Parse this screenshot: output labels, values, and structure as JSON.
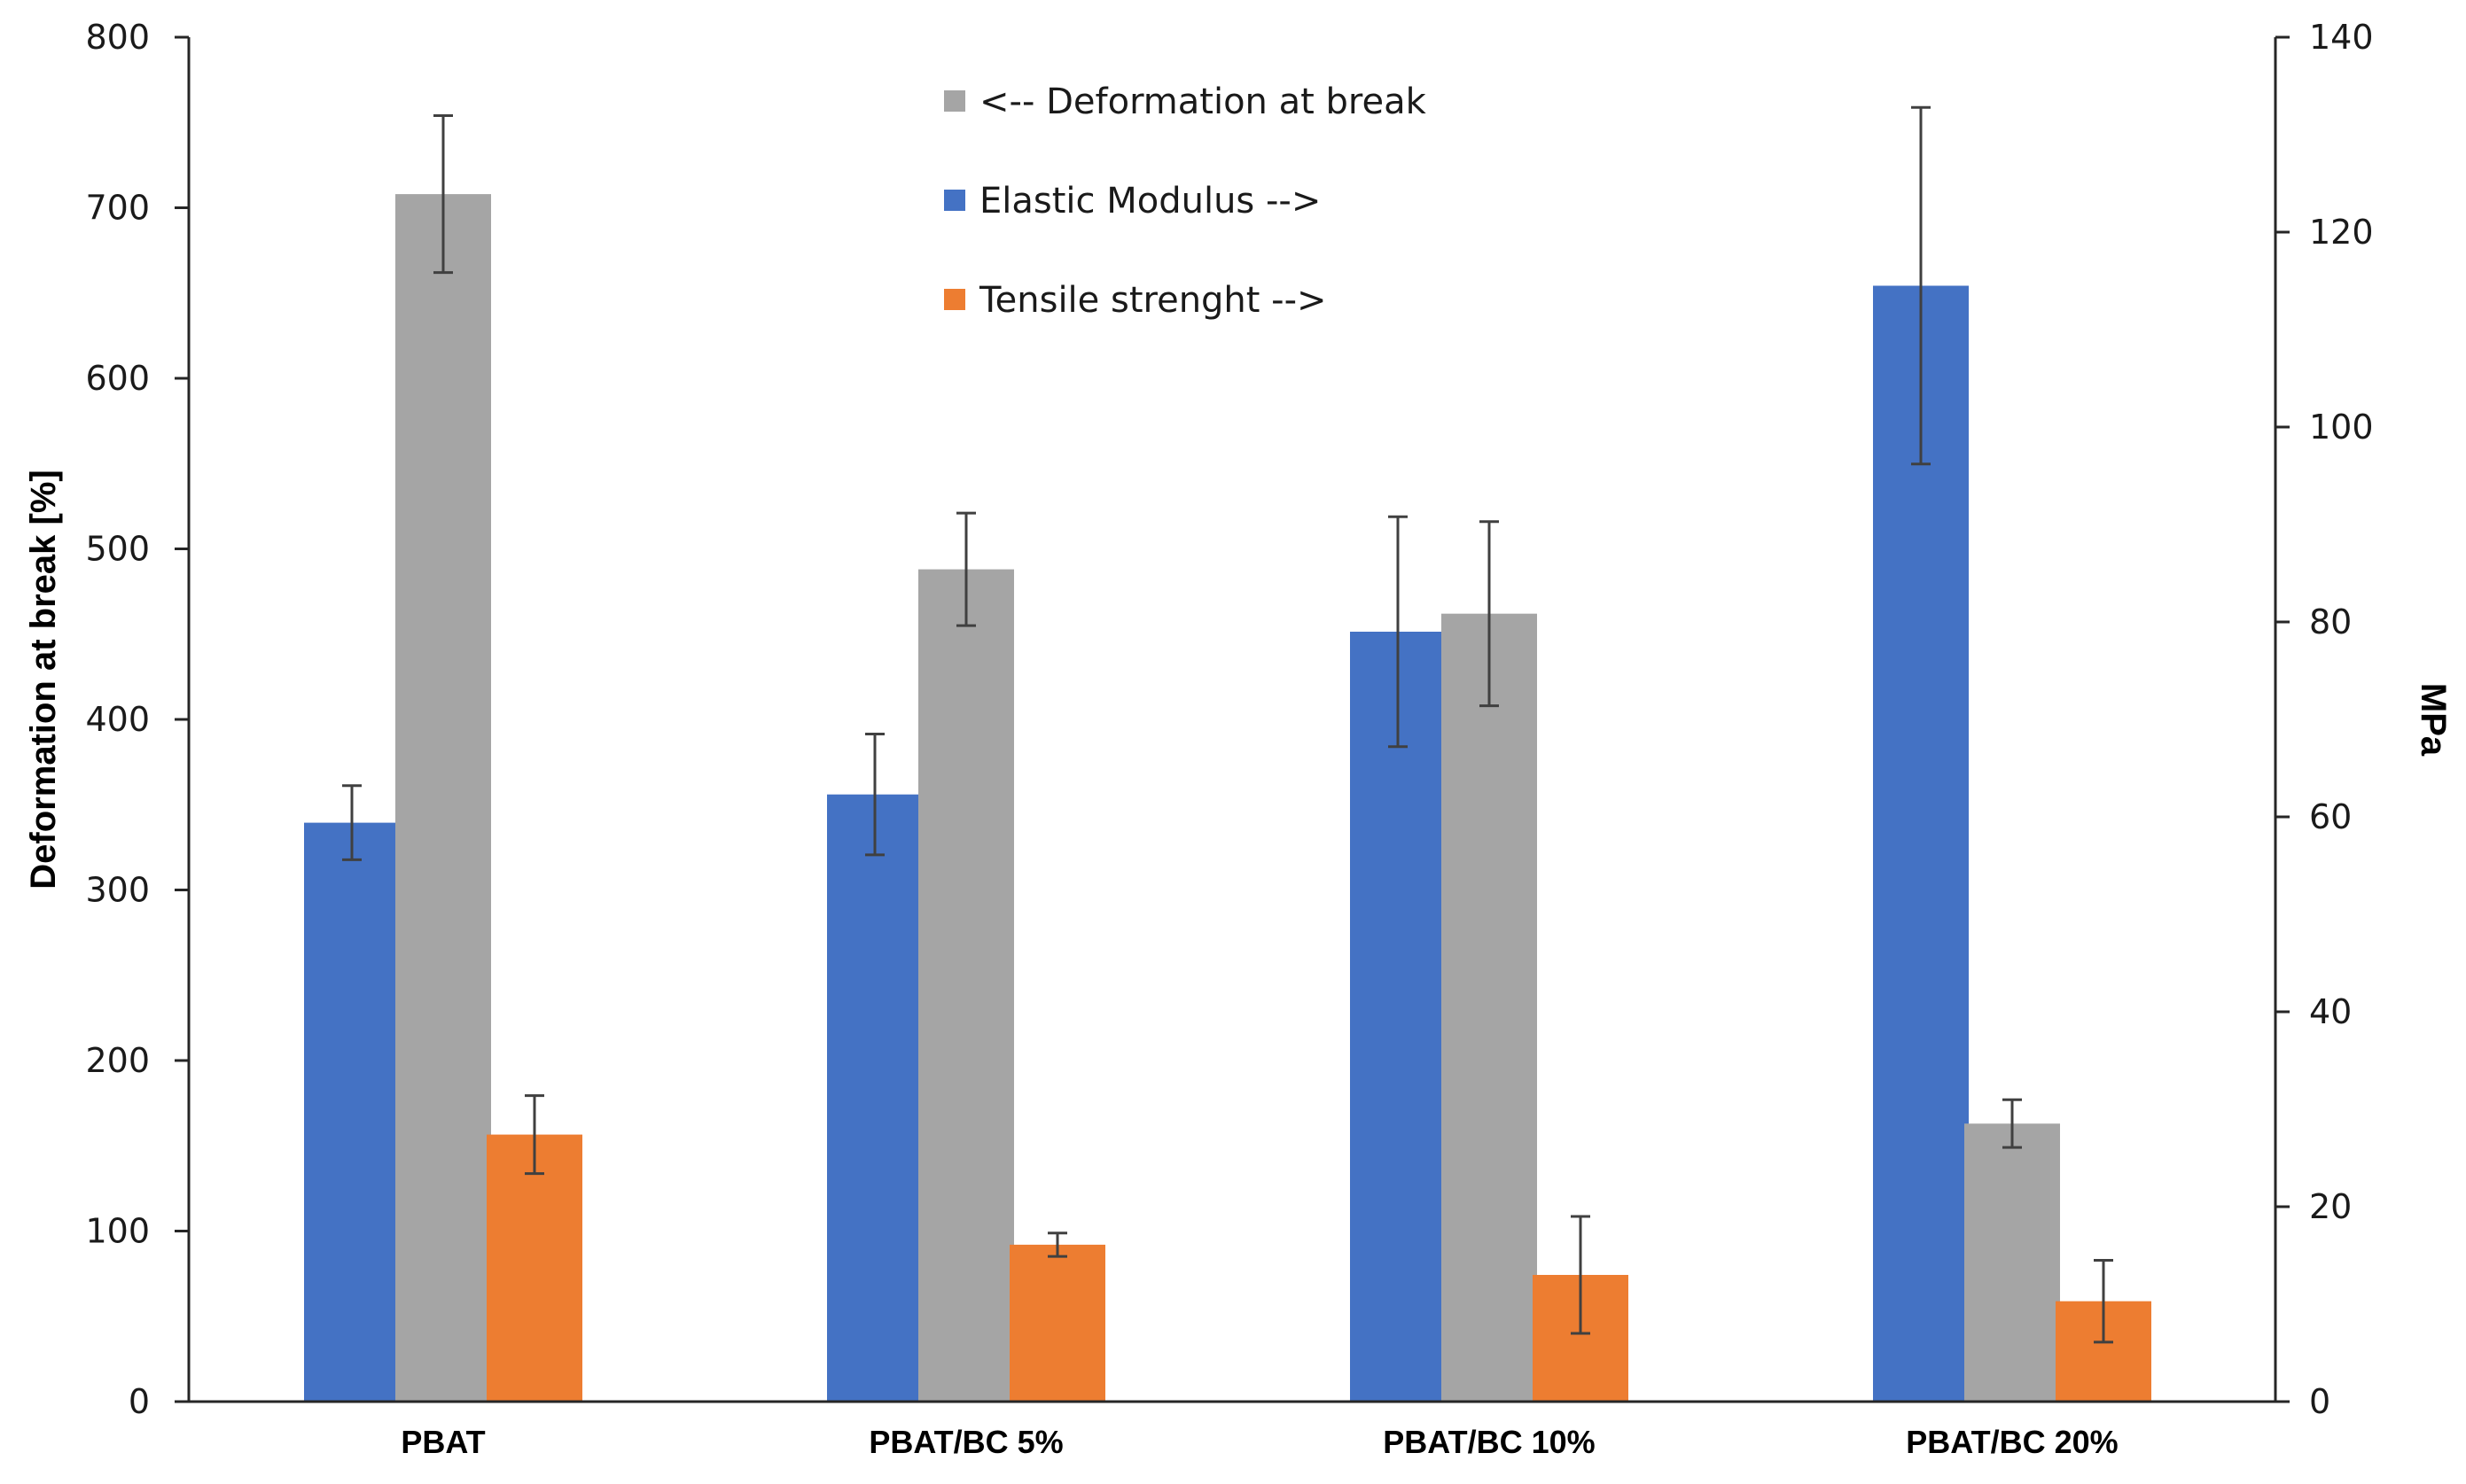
{
  "chart_data": {
    "type": "bar",
    "title": "",
    "categories": [
      "PBAT",
      "PBAT/BC 5%",
      "PBAT/BC 10%",
      "PBAT/BC 20%"
    ],
    "ylabel": "Deformation at break [%]",
    "y2label": "MPa",
    "ylim": [
      0,
      800
    ],
    "y2lim": [
      0,
      140
    ],
    "yticks": [
      0,
      100,
      200,
      300,
      400,
      500,
      600,
      700,
      800
    ],
    "y2ticks": [
      0,
      20,
      40,
      60,
      80,
      100,
      120,
      140
    ],
    "grid": false,
    "legend_position": "top-center",
    "series": [
      {
        "name": "Elastic Modulus -->",
        "axis": "right",
        "color": "#4472C4",
        "values": [
          59.4,
          62.3,
          79.0,
          114.5
        ],
        "errors": [
          3.8,
          6.2,
          11.8,
          18.3
        ]
      },
      {
        "name": "<-- Deformation at break",
        "axis": "left",
        "color": "#A5A5A5",
        "values": [
          708,
          488,
          462,
          163
        ],
        "errors": [
          46,
          33,
          54,
          14
        ]
      },
      {
        "name": "Tensile strenght -->",
        "axis": "right",
        "color": "#ED7D31",
        "values": [
          27.4,
          16.1,
          13.0,
          10.3
        ],
        "errors": [
          4.0,
          1.2,
          6.0,
          4.2
        ]
      }
    ],
    "legend_order": [
      "<-- Deformation at break",
      "Elastic Modulus -->",
      "Tensile strenght -->"
    ]
  }
}
